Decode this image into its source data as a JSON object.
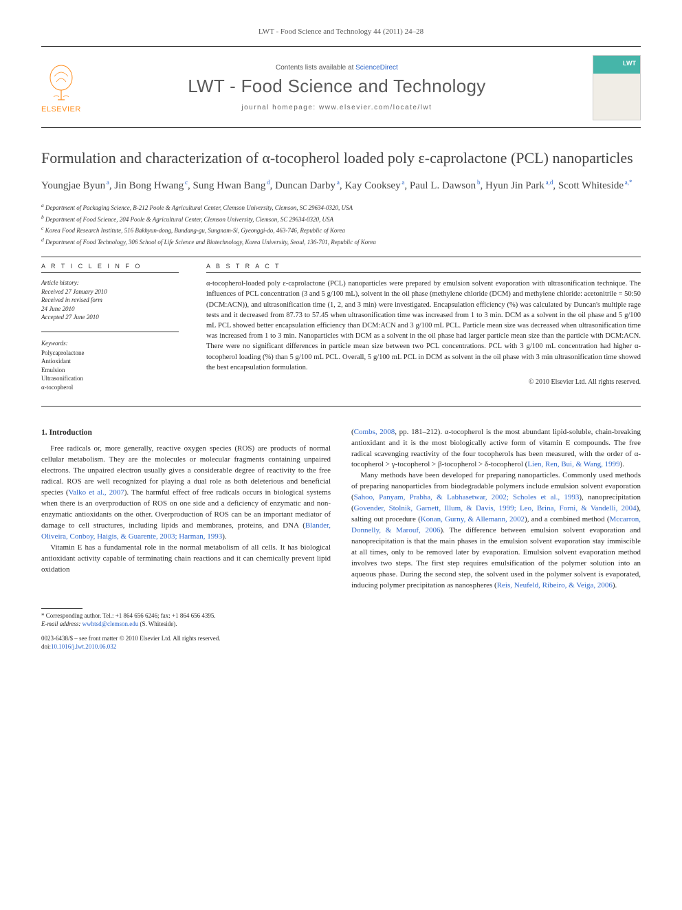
{
  "journal_header": "LWT - Food Science and Technology 44 (2011) 24–28",
  "top": {
    "contents_prefix": "Contents lists available at ",
    "contents_link": "ScienceDirect",
    "journal_name": "LWT - Food Science and Technology",
    "homepage_prefix": "journal homepage: ",
    "homepage_url": "www.elsevier.com/locate/lwt",
    "publisher": "ELSEVIER"
  },
  "title": "Formulation and characterization of α-tocopherol loaded poly ε-caprolactone (PCL) nanoparticles",
  "authors": [
    {
      "name": "Youngjae Byun",
      "sup": "a"
    },
    {
      "name": "Jin Bong Hwang",
      "sup": "c"
    },
    {
      "name": "Sung Hwan Bang",
      "sup": "d"
    },
    {
      "name": "Duncan Darby",
      "sup": "a"
    },
    {
      "name": "Kay Cooksey",
      "sup": "a"
    },
    {
      "name": "Paul L. Dawson",
      "sup": "b"
    },
    {
      "name": "Hyun Jin Park",
      "sup": "a,d"
    },
    {
      "name": "Scott Whiteside",
      "sup": "a,*"
    }
  ],
  "affiliations": [
    {
      "sup": "a",
      "text": "Department of Packaging Science, B-212 Poole & Agricultural Center, Clemson University, Clemson, SC 29634-0320, USA"
    },
    {
      "sup": "b",
      "text": "Department of Food Science, 204 Poole & Agricultural Center, Clemson University, Clemson, SC 29634-0320, USA"
    },
    {
      "sup": "c",
      "text": "Korea Food Research Institute, 516 Bakhyun-dong, Bundang-gu, Sungnam-Si, Gyeonggi-do, 463-746, Republic of Korea"
    },
    {
      "sup": "d",
      "text": "Department of Food Technology, 306 School of Life Science and Biotechnology, Korea University, Seoul, 136-701, Republic of Korea"
    }
  ],
  "article_info": {
    "heading": "A R T I C L E   I N F O",
    "history_label": "Article history:",
    "history": [
      "Received 27 January 2010",
      "Received in revised form",
      "24 June 2010",
      "Accepted 27 June 2010"
    ],
    "keywords_label": "Keywords:",
    "keywords": [
      "Polycaprolactone",
      "Antioxidant",
      "Emulsion",
      "Ultrasonification",
      "α-tocopherol"
    ]
  },
  "abstract": {
    "heading": "A B S T R A C T",
    "text": "α-tocopherol-loaded poly ε-caprolactone (PCL) nanoparticles were prepared by emulsion solvent evaporation with ultrasonification technique. The influences of PCL concentration (3 and 5 g/100 mL), solvent in the oil phase (methylene chloride (DCM) and methylene chloride: acetonitrile = 50:50 (DCM:ACN)), and ultrasonification time (1, 2, and 3 min) were investigated. Encapsulation efficiency (%) was calculated by Duncan's multiple rage tests and it decreased from 87.73 to 57.45 when ultrasonification time was increased from 1 to 3 min. DCM as a solvent in the oil phase and 5 g/100 mL PCL showed better encapsulation efficiency than DCM:ACN and 3 g/100 mL PCL. Particle mean size was decreased when ultrasonification time was increased from 1 to 3 min. Nanoparticles with DCM as a solvent in the oil phase had larger particle mean size than the particle with DCM:ACN. There were no significant differences in particle mean size between two PCL concentrations. PCL with 3 g/100 mL concentration had higher α-tocopherol loading (%) than 5 g/100 mL PCL. Overall, 5 g/100 mL PCL in DCM as solvent in the oil phase with 3 min ultrasonification time showed the best encapsulation formulation.",
    "copyright": "© 2010 Elsevier Ltd. All rights reserved."
  },
  "section1": {
    "heading": "1. Introduction",
    "para1_pre": "Free radicals or, more generally, reactive oxygen species (ROS) are products of normal cellular metabolism. They are the molecules or molecular fragments containing unpaired electrons. The unpaired electron usually gives a considerable degree of reactivity to the free radical. ROS are well recognized for playing a dual role as both deleterious and beneficial species (",
    "para1_cite1": "Valko et al., 2007",
    "para1_mid": "). The harmful effect of free radicals occurs in biological systems when there is an overproduction of ROS on one side and a deficiency of enzymatic and non-enzymatic antioxidants on the other. Overproduction of ROS can be an important mediator of damage to cell structures, including lipids and membranes, proteins, and DNA (",
    "para1_cite2": "Blander, Oliveira, Conboy, Haigis, & Guarente, 2003; Harman, 1993",
    "para1_post": ").",
    "para2": "Vitamin E has a fundamental role in the normal metabolism of all cells. It has biological antioxidant activity capable of terminating chain reactions and it can chemically prevent lipid oxidation",
    "para3_pre": "(",
    "para3_cite1": "Combs, 2008",
    "para3_mid1": ", pp. 181–212). α-tocopherol is the most abundant lipid-soluble, chain-breaking antioxidant and it is the most biologically active form of vitamin E compounds. The free radical scavenging reactivity of the four tocopherols has been measured, with the order of α-tocopherol > γ-tocopherol > β-tocopherol > δ-tocopherol (",
    "para3_cite2": "Lien, Ren, Bui, & Wang, 1999",
    "para3_post": ").",
    "para4_pre": "Many methods have been developed for preparing nanoparticles. Commonly used methods of preparing nanoparticles from biodegradable polymers include emulsion solvent evaporation (",
    "para4_cite1": "Sahoo, Panyam, Prabha, & Labhasetwar, 2002; Scholes et al., 1993",
    "para4_mid1": "), nanoprecipitation (",
    "para4_cite2": "Govender, Stolnik, Garnett, Illum, & Davis, 1999; Leo, Brina, Forni, & Vandelli, 2004",
    "para4_mid2": "), salting out procedure (",
    "para4_cite3": "Konan, Gurny, & Allemann, 2002",
    "para4_mid3": "), and a combined method (",
    "para4_cite4": "Mccarron, Donnelly, & Marouf, 2006",
    "para4_mid4": "). The difference between emulsion solvent evaporation and nanoprecipitation is that the main phases in the emulsion solvent evaporation stay immiscible at all times, only to be removed later by evaporation. Emulsion solvent evaporation method involves two steps. The first step requires emulsification of the polymer solution into an aqueous phase. During the second step, the solvent used in the polymer solvent is evaporated, inducing polymer precipitation as nanospheres (",
    "para4_cite5": "Reis, Neufeld, Ribeiro, & Veiga, 2006",
    "para4_post": ")."
  },
  "footer": {
    "corresponding": "* Corresponding author. Tel.: +1 864 656 6246; fax: +1 864 656 4395.",
    "email_label": "E-mail address: ",
    "email": "wwhtsd@clemson.edu",
    "email_name": " (S. Whiteside).",
    "copyright": "0023-6438/$ – see front matter © 2010 Elsevier Ltd. All rights reserved.",
    "doi_label": "doi:",
    "doi": "10.1016/j.lwt.2010.06.032"
  },
  "colors": {
    "link": "#2b63c7",
    "elsevier_orange": "#ff8c1a",
    "text": "#2a2a2a",
    "cover_teal": "#46b5a9"
  }
}
